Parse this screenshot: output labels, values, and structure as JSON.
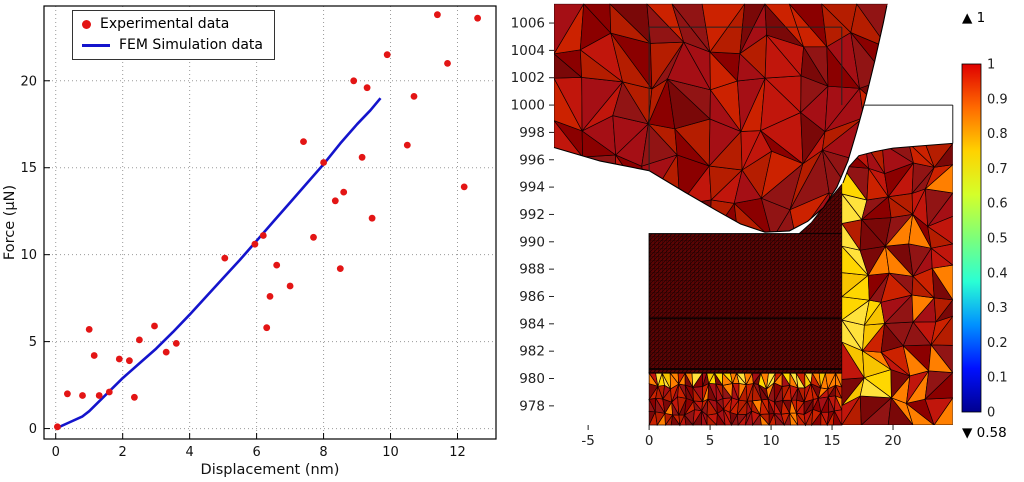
{
  "chart_data": [
    {
      "type": "scatter",
      "title": "",
      "xlabel": "Displacement (nm)",
      "ylabel": "Force (µN)",
      "xlim": [
        -0.35,
        13.15
      ],
      "ylim": [
        -0.6,
        24.3
      ],
      "xticks": [
        0,
        2,
        4,
        6,
        8,
        10,
        12
      ],
      "yticks": [
        0,
        5,
        10,
        15,
        20
      ],
      "grid": true,
      "legend_position": "top-left",
      "series": [
        {
          "name": "Experimental data",
          "kind": "scatter",
          "color": "#e31515",
          "points": [
            [
              0.05,
              0.1
            ],
            [
              0.35,
              2.0
            ],
            [
              0.8,
              1.9
            ],
            [
              1.0,
              5.7
            ],
            [
              1.15,
              4.2
            ],
            [
              1.3,
              1.9
            ],
            [
              1.6,
              2.1
            ],
            [
              1.9,
              4.0
            ],
            [
              2.2,
              3.9
            ],
            [
              2.35,
              1.8
            ],
            [
              2.5,
              5.1
            ],
            [
              2.95,
              5.9
            ],
            [
              3.3,
              4.4
            ],
            [
              3.6,
              4.9
            ],
            [
              5.05,
              9.8
            ],
            [
              5.95,
              10.6
            ],
            [
              6.2,
              11.1
            ],
            [
              6.3,
              5.8
            ],
            [
              6.4,
              7.6
            ],
            [
              6.6,
              9.4
            ],
            [
              7.0,
              8.2
            ],
            [
              7.4,
              16.5
            ],
            [
              7.7,
              11.0
            ],
            [
              8.0,
              15.3
            ],
            [
              8.35,
              13.1
            ],
            [
              8.5,
              9.2
            ],
            [
              8.6,
              13.6
            ],
            [
              8.9,
              20.0
            ],
            [
              9.15,
              15.6
            ],
            [
              9.3,
              19.6
            ],
            [
              9.45,
              12.1
            ],
            [
              9.9,
              21.5
            ],
            [
              10.5,
              16.3
            ],
            [
              10.7,
              19.1
            ],
            [
              11.4,
              23.8
            ],
            [
              11.7,
              21.0
            ],
            [
              12.2,
              13.9
            ],
            [
              12.6,
              23.6
            ]
          ]
        },
        {
          "name": "FEM Simulation data",
          "kind": "line",
          "color": "#1414cc",
          "points": [
            [
              0,
              0
            ],
            [
              0.4,
              0.35
            ],
            [
              0.8,
              0.7
            ],
            [
              1.0,
              1.0
            ],
            [
              1.5,
              1.95
            ],
            [
              2,
              2.9
            ],
            [
              2.5,
              3.75
            ],
            [
              3,
              4.6
            ],
            [
              3.5,
              5.55
            ],
            [
              4,
              6.55
            ],
            [
              4.5,
              7.6
            ],
            [
              5,
              8.65
            ],
            [
              5.5,
              9.7
            ],
            [
              6,
              10.8
            ],
            [
              6.5,
              11.9
            ],
            [
              7,
              13.0
            ],
            [
              7.5,
              14.1
            ],
            [
              8,
              15.2
            ],
            [
              8.5,
              16.4
            ],
            [
              9,
              17.5
            ],
            [
              9.4,
              18.3
            ],
            [
              9.7,
              19.0
            ]
          ]
        }
      ]
    },
    {
      "type": "heatmap",
      "title": "",
      "xlabel": "",
      "ylabel": "",
      "xlim": [
        -7.8,
        25.0
      ],
      "ylim": [
        976.6,
        1007.1
      ],
      "xticks": [
        -5,
        0,
        5,
        10,
        15,
        20
      ],
      "yticks": [
        978,
        980,
        982,
        984,
        986,
        988,
        990,
        992,
        994,
        996,
        998,
        1000,
        1002,
        1004,
        1006
      ],
      "colorbar": {
        "ticks": [
          0,
          0.1,
          0.2,
          0.3,
          0.4,
          0.5,
          0.6,
          0.7,
          0.8,
          0.9,
          1
        ],
        "max_marker": "▲ 1",
        "min_marker": "▼ 0.58",
        "colormap": [
          "#00008f",
          "#0010ff",
          "#0090ff",
          "#2affd4",
          "#7dff7a",
          "#d4ff2a",
          "#ffd200",
          "#ff6a00",
          "#df0000"
        ]
      },
      "mesh_palette": {
        "reds": [
          "#a50f15",
          "#c1160c",
          "#8b0000",
          "#b51d00",
          "#cc2200",
          "#911414",
          "#7a0808"
        ],
        "yellows": [
          "#ffd700",
          "#ffe23c",
          "#f7c400"
        ],
        "orange": "#ff7f00",
        "fine_base": "#5c0404",
        "edge": "#140000"
      }
    }
  ]
}
